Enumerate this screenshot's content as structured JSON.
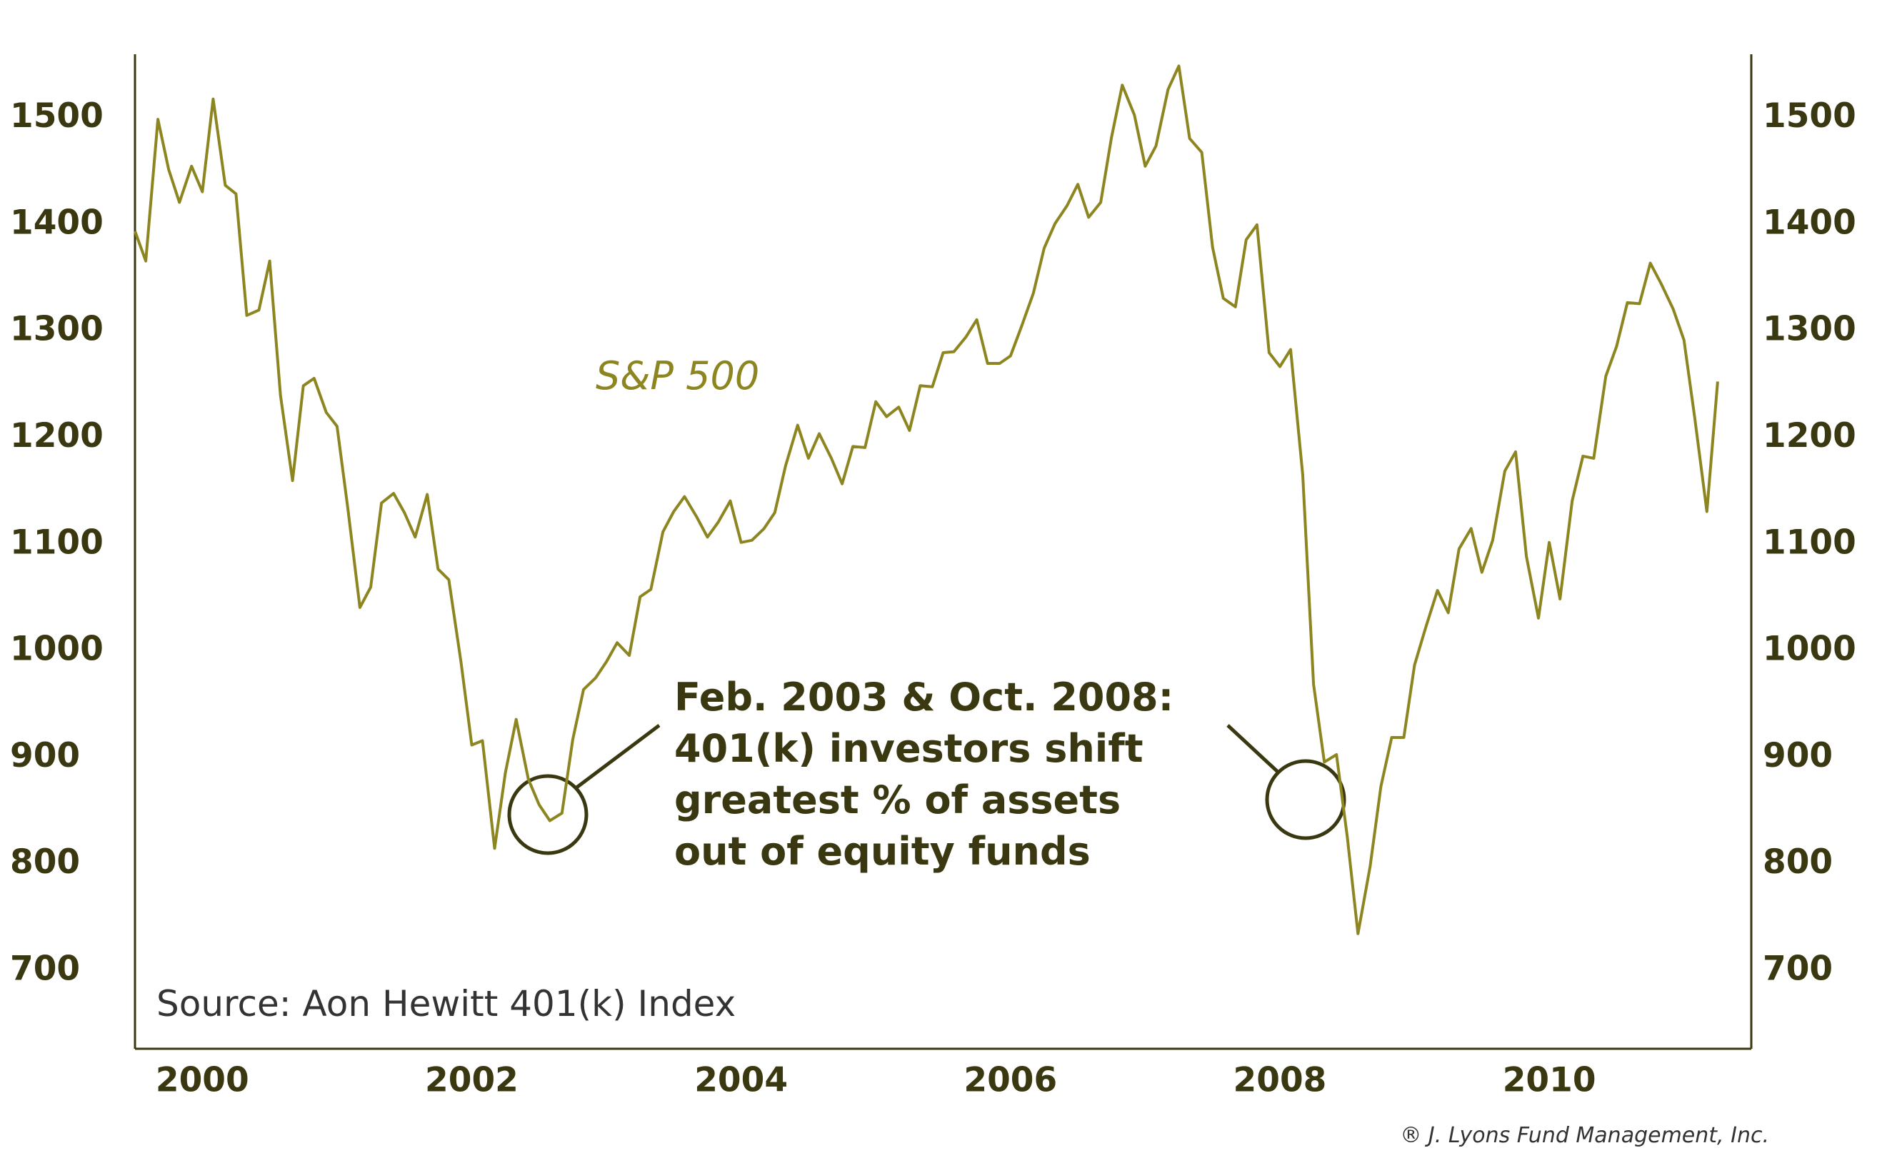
{
  "chart_data": {
    "type": "line",
    "annotations": [
      "Feb. 2003 & Oct. 2008:",
      "401(k) investors shift",
      "greatest % of assets",
      "out of equity funds"
    ],
    "source": "Source: Aon Hewitt 401(k) Index",
    "credit": "® J. Lyons Fund Management, Inc.",
    "x": [
      2000,
      2000.08,
      2000.17,
      2000.25,
      2000.33,
      2000.42,
      2000.5,
      2000.58,
      2000.67,
      2000.75,
      2000.83,
      2000.92,
      2001,
      2001.08,
      2001.17,
      2001.25,
      2001.33,
      2001.42,
      2001.5,
      2001.58,
      2001.67,
      2001.75,
      2001.83,
      2001.92,
      2002,
      2002.08,
      2002.17,
      2002.25,
      2002.33,
      2002.42,
      2002.5,
      2002.58,
      2002.67,
      2002.75,
      2002.83,
      2002.92,
      2003,
      2003.08,
      2003.17,
      2003.25,
      2003.33,
      2003.42,
      2003.5,
      2003.58,
      2003.67,
      2003.75,
      2003.83,
      2003.92,
      2004,
      2004.08,
      2004.17,
      2004.25,
      2004.33,
      2004.42,
      2004.5,
      2004.58,
      2004.67,
      2004.75,
      2004.83,
      2004.92,
      2005,
      2005.08,
      2005.17,
      2005.25,
      2005.33,
      2005.42,
      2005.5,
      2005.58,
      2005.67,
      2005.75,
      2005.83,
      2005.92,
      2006,
      2006.08,
      2006.17,
      2006.25,
      2006.33,
      2006.42,
      2006.5,
      2006.58,
      2006.67,
      2006.75,
      2006.83,
      2006.92,
      2007,
      2007.08,
      2007.17,
      2007.25,
      2007.33,
      2007.42,
      2007.5,
      2007.58,
      2007.67,
      2007.75,
      2007.83,
      2007.92,
      2008,
      2008.08,
      2008.17,
      2008.25,
      2008.33,
      2008.42,
      2008.5,
      2008.58,
      2008.67,
      2008.75,
      2008.83,
      2008.92,
      2009,
      2009.08,
      2009.17,
      2009.25,
      2009.33,
      2009.42,
      2009.5,
      2009.58,
      2009.67,
      2009.75,
      2009.83,
      2009.92,
      2010,
      2010.08,
      2010.17,
      2010.25,
      2010.33,
      2010.42,
      2010.5,
      2010.58,
      2010.67,
      2010.75,
      2010.83,
      2010.92,
      2011,
      2011.08,
      2011.17,
      2011.25,
      2011.33,
      2011.42,
      2011.5,
      2011.58,
      2011.67,
      2011.75
    ],
    "series": [
      {
        "name": "S&P 500",
        "color": "#8c8520",
        "values": [
          1394,
          1366,
          1499,
          1452,
          1421,
          1455,
          1431,
          1518,
          1437,
          1429,
          1315,
          1320,
          1366,
          1240,
          1160,
          1249,
          1256,
          1224,
          1211,
          1134,
          1041,
          1060,
          1139,
          1148,
          1130,
          1107,
          1147,
          1077,
          1067,
          990,
          912,
          916,
          815,
          886,
          936,
          880,
          856,
          841,
          848,
          917,
          964,
          975,
          990,
          1008,
          996,
          1051,
          1058,
          1112,
          1131,
          1145,
          1126,
          1107,
          1121,
          1141,
          1102,
          1104,
          1115,
          1130,
          1174,
          1212,
          1181,
          1204,
          1181,
          1157,
          1192,
          1191,
          1234,
          1220,
          1229,
          1207,
          1249,
          1248,
          1280,
          1281,
          1295,
          1311,
          1270,
          1270,
          1277,
          1304,
          1336,
          1378,
          1401,
          1418,
          1438,
          1407,
          1421,
          1482,
          1531,
          1503,
          1455,
          1474,
          1527,
          1549,
          1481,
          1468,
          1379,
          1331,
          1323,
          1386,
          1400,
          1280,
          1267,
          1283,
          1165,
          969,
          896,
          903,
          826,
          735,
          798,
          873,
          919,
          919,
          987,
          1021,
          1057,
          1036,
          1096,
          1115,
          1074,
          1104,
          1169,
          1187,
          1089,
          1031,
          1102,
          1049,
          1141,
          1183,
          1181,
          1258,
          1286,
          1327,
          1326,
          1364,
          1345,
          1321,
          1292,
          1219,
          1131,
          1253
        ]
      }
    ],
    "xlim": [
      2000,
      2012
    ],
    "xticks": [
      {
        "value": 2000.5,
        "label": "2000"
      },
      {
        "value": 2002.5,
        "label": "2002"
      },
      {
        "value": 2004.5,
        "label": "2004"
      },
      {
        "value": 2006.5,
        "label": "2006"
      },
      {
        "value": 2008.5,
        "label": "2008"
      },
      {
        "value": 2010.5,
        "label": "2010"
      }
    ],
    "ylim": [
      627,
      1560
    ],
    "yticks": [
      700,
      800,
      900,
      1000,
      1100,
      1200,
      1300,
      1400,
      1500
    ],
    "y2lim": [
      627,
      1560
    ],
    "y2ticks": [
      700,
      800,
      900,
      1000,
      1100,
      1200,
      1300,
      1400,
      1500
    ],
    "grid": false
  }
}
